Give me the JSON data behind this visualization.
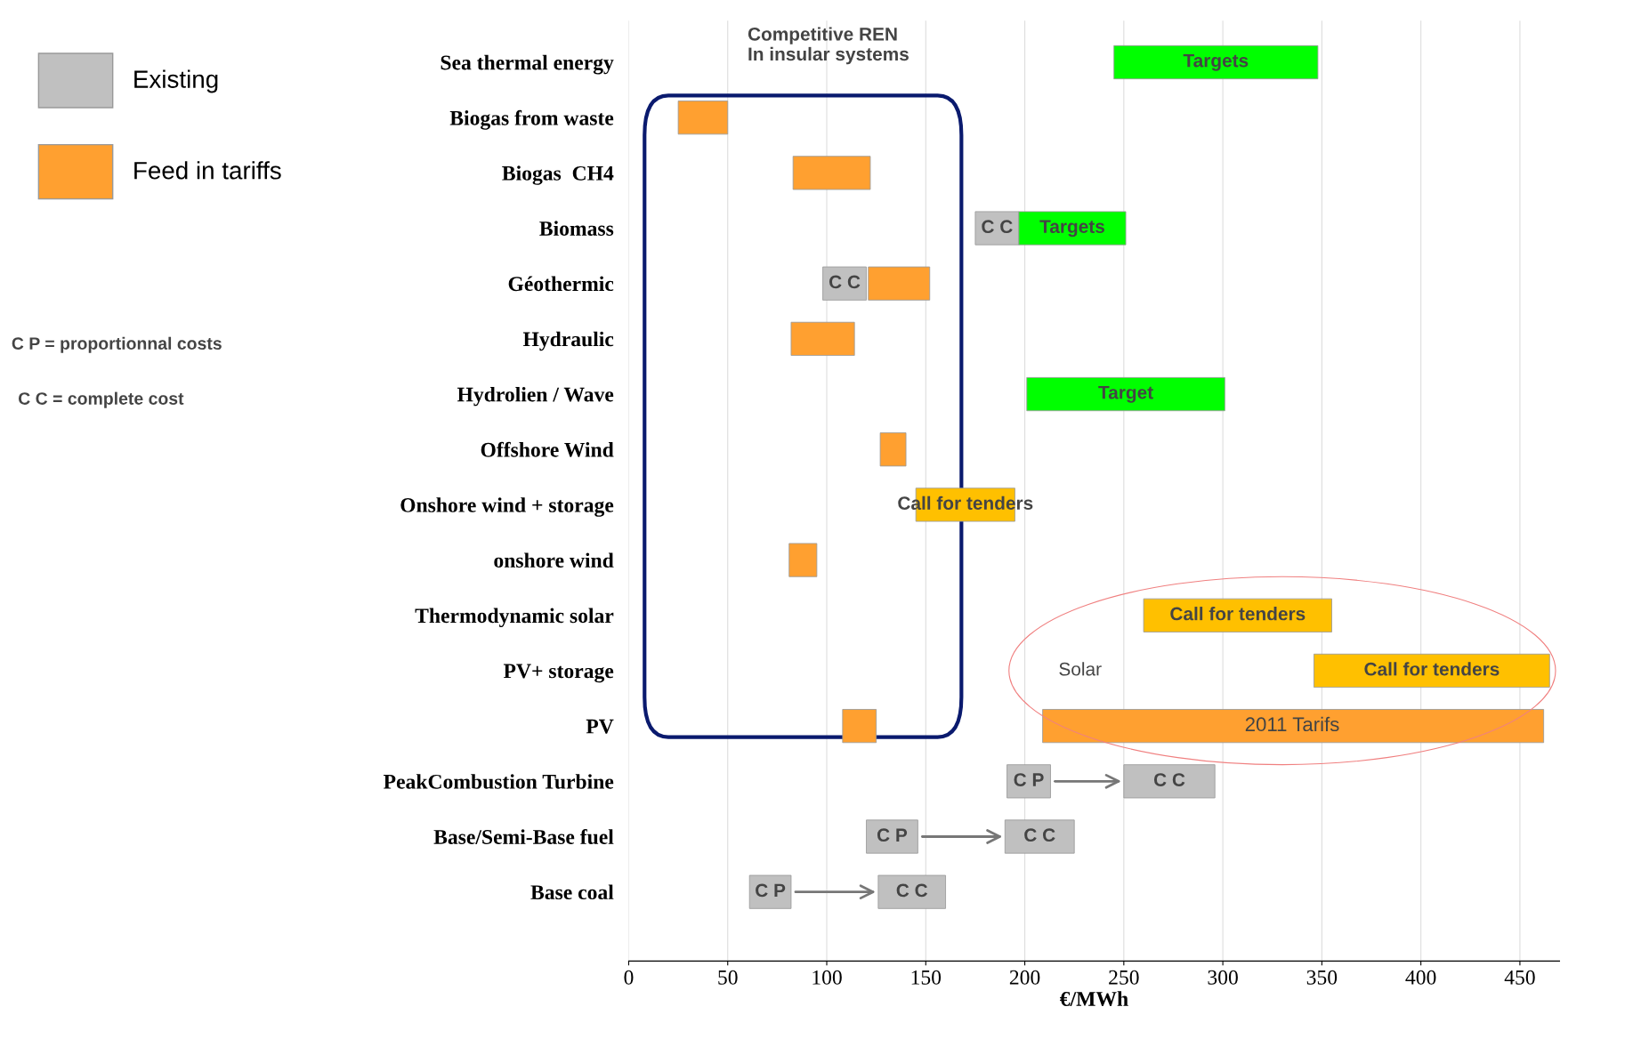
{
  "chart_data": {
    "type": "bar",
    "orientation": "horizontal",
    "xlabel": "€/MWh",
    "categories": [
      "Sea thermal energy",
      "Biogas from waste",
      "Biogas  CH4",
      "Biomass",
      "Géothermic",
      "Hydraulic",
      "Hydrolien / Wave",
      "Offshore Wind",
      "Onshore wind + storage",
      "onshore wind",
      "Thermodynamic solar",
      "PV+ storage",
      "PV",
      "PeakCombustion Turbine",
      "Base/Semi-Base fuel",
      "Base coal"
    ],
    "series": [
      {
        "name": "Existing",
        "color": "#c0c0c0",
        "base": [
          null,
          null,
          null,
          175,
          98,
          null,
          null,
          null,
          null,
          null,
          null,
          null,
          null,
          191,
          120,
          61
        ],
        "values": [
          null,
          null,
          null,
          22,
          22,
          null,
          null,
          null,
          null,
          null,
          null,
          null,
          null,
          22,
          26,
          21
        ],
        "value_labels": [
          null,
          null,
          null,
          "C C",
          "C C",
          null,
          null,
          null,
          null,
          null,
          null,
          null,
          null,
          "C P",
          "C P",
          "C P"
        ]
      },
      {
        "color": "#c0c0c0",
        "base": [
          null,
          null,
          null,
          null,
          null,
          null,
          null,
          null,
          null,
          null,
          null,
          null,
          null,
          250,
          190,
          126
        ],
        "values": [
          null,
          null,
          null,
          null,
          null,
          null,
          null,
          null,
          null,
          null,
          null,
          null,
          null,
          46,
          35,
          34
        ],
        "value_labels": [
          null,
          null,
          null,
          null,
          null,
          null,
          null,
          null,
          null,
          null,
          null,
          null,
          null,
          "C C",
          "C C",
          "C C"
        ]
      },
      {
        "name": "Feed in tariffs",
        "color": "#ffa030",
        "base": [
          null,
          25,
          83,
          null,
          121,
          82,
          null,
          127,
          null,
          81,
          null,
          null,
          108,
          null,
          null,
          null
        ],
        "values": [
          null,
          25,
          39,
          null,
          31,
          32,
          null,
          13,
          null,
          14,
          null,
          null,
          17,
          null,
          null,
          null
        ]
      },
      {
        "color": "#ffa030",
        "base": [
          null,
          null,
          null,
          null,
          null,
          null,
          null,
          null,
          null,
          null,
          null,
          null,
          209,
          null,
          null,
          null
        ],
        "values": [
          null,
          null,
          null,
          null,
          null,
          null,
          null,
          null,
          null,
          null,
          null,
          null,
          253,
          null,
          null,
          null
        ]
      },
      {
        "color": "#00ff00",
        "base": [
          245,
          null,
          null,
          197,
          null,
          null,
          201,
          null,
          null,
          null,
          null,
          null,
          null,
          null,
          null,
          null
        ],
        "values": [
          103,
          null,
          null,
          54,
          null,
          null,
          100,
          null,
          null,
          null,
          null,
          null,
          null,
          null,
          null,
          null
        ],
        "value_labels": [
          "Targets",
          null,
          null,
          "Targets",
          null,
          null,
          "Target",
          null,
          null,
          null,
          null,
          null,
          null,
          null,
          null,
          null
        ]
      },
      {
        "color": "#ffc000",
        "base": [
          null,
          null,
          null,
          null,
          null,
          null,
          null,
          null,
          145,
          null,
          260,
          346,
          null,
          null,
          null,
          null
        ],
        "values": [
          null,
          null,
          null,
          null,
          null,
          null,
          null,
          null,
          50,
          null,
          95,
          119,
          null,
          null,
          null,
          null
        ],
        "value_labels": [
          null,
          null,
          null,
          null,
          null,
          null,
          null,
          null,
          "Call for tenders",
          null,
          "Call for tenders",
          "Call for tenders",
          null,
          null,
          null,
          null
        ]
      }
    ],
    "xlim": [
      0,
      470
    ],
    "xticks": [
      0,
      50,
      100,
      150,
      200,
      250,
      300,
      350,
      400,
      450
    ],
    "grid": "x",
    "legend": "left",
    "annotations": [
      "Competitive REN\nIn insular systems",
      "Solar",
      "C P = proportionnal costs",
      "C C = complete cost",
      "2011 Tarifs"
    ]
  }
}
